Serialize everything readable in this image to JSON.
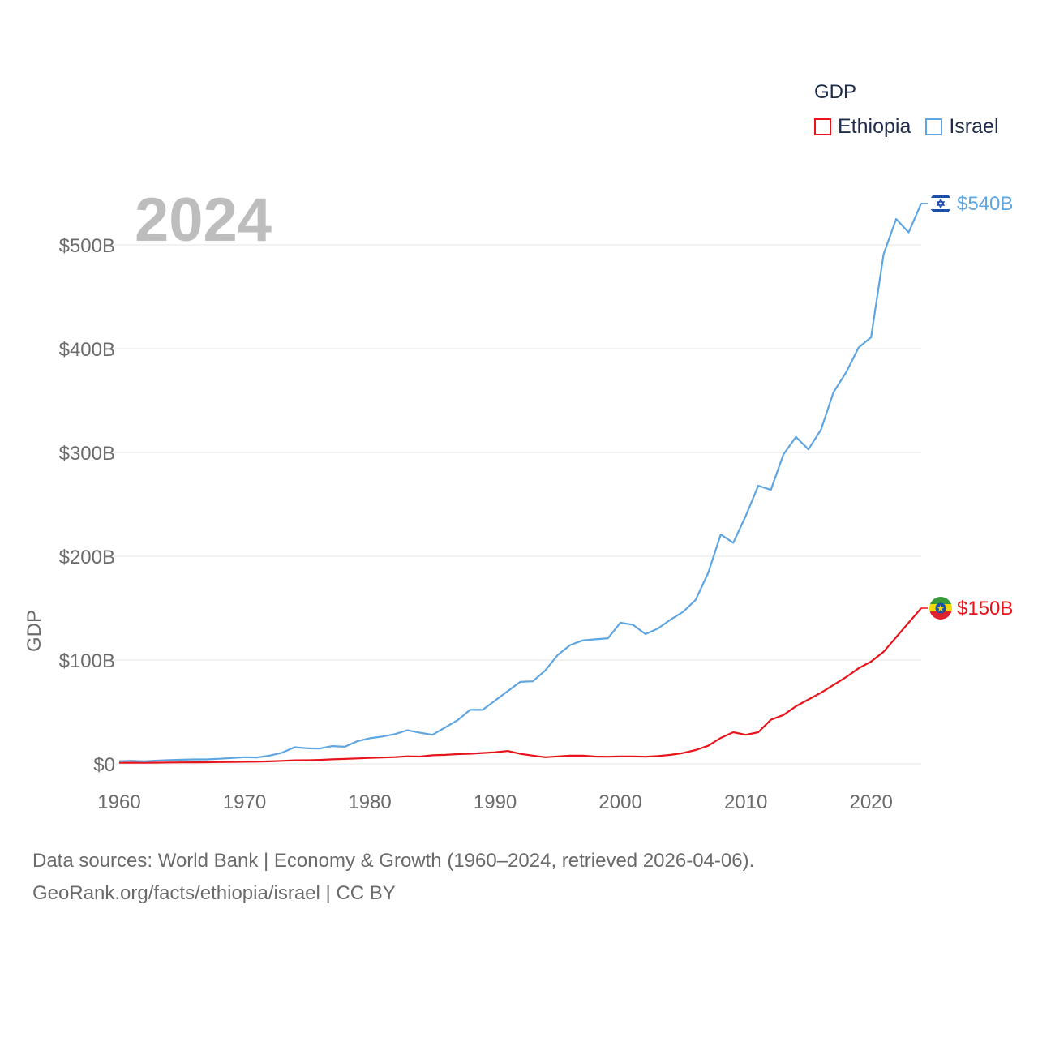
{
  "legend": {
    "title": "GDP",
    "items": [
      {
        "label": "Ethiopia",
        "color": "#e8141b"
      },
      {
        "label": "Israel",
        "color": "#5fa5e0"
      }
    ]
  },
  "year_label": "2024",
  "source": {
    "line1": "Data sources: World Bank | Economy & Growth (1960–2024, retrieved 2026-04-06).",
    "line2": "GeoRank.org/facts/ethiopia/israel | CC BY"
  },
  "colors": {
    "ethiopia": "#e8141b",
    "israel": "#5fa5e0",
    "grid": "#e6e6e6",
    "axis_text": "#6b6b6b"
  },
  "chart_data": {
    "type": "line",
    "title": "GDP",
    "xlabel": "",
    "ylabel": "GDP",
    "xlim": [
      1960,
      2024
    ],
    "ylim": [
      0,
      500
    ],
    "y_unit": "billion USD",
    "x_ticks": [
      {
        "value": 1960,
        "label": "1960"
      },
      {
        "value": 1970,
        "label": "1970"
      },
      {
        "value": 1980,
        "label": "1980"
      },
      {
        "value": 1990,
        "label": "1990"
      },
      {
        "value": 2000,
        "label": "2000"
      },
      {
        "value": 2010,
        "label": "2010"
      },
      {
        "value": 2020,
        "label": "2020"
      }
    ],
    "y_ticks": [
      {
        "value": 0,
        "label": "$0"
      },
      {
        "value": 100,
        "label": "$100B"
      },
      {
        "value": 200,
        "label": "$200B"
      },
      {
        "value": 300,
        "label": "$300B"
      },
      {
        "value": 400,
        "label": "$400B"
      },
      {
        "value": 500,
        "label": "$500B"
      }
    ],
    "x": [
      1960,
      1961,
      1962,
      1963,
      1964,
      1965,
      1966,
      1967,
      1968,
      1969,
      1970,
      1971,
      1972,
      1973,
      1974,
      1975,
      1976,
      1977,
      1978,
      1979,
      1980,
      1981,
      1982,
      1983,
      1984,
      1985,
      1986,
      1987,
      1988,
      1989,
      1990,
      1991,
      1992,
      1993,
      1994,
      1995,
      1996,
      1997,
      1998,
      1999,
      2000,
      2001,
      2002,
      2003,
      2004,
      2005,
      2006,
      2007,
      2008,
      2009,
      2010,
      2011,
      2012,
      2013,
      2014,
      2015,
      2016,
      2017,
      2018,
      2019,
      2020,
      2021,
      2022,
      2023,
      2024
    ],
    "series": [
      {
        "name": "Ethiopia",
        "end_label": "$150B",
        "values": [
          1.0,
          1.1,
          1.1,
          1.2,
          1.3,
          1.4,
          1.5,
          1.6,
          1.7,
          1.8,
          2.0,
          2.1,
          2.4,
          2.9,
          3.4,
          3.5,
          3.8,
          4.4,
          4.8,
          5.2,
          5.7,
          6.1,
          6.5,
          7.3,
          7.0,
          8.3,
          8.7,
          9.4,
          9.8,
          10.5,
          11.2,
          12.4,
          9.7,
          8.0,
          6.4,
          7.2,
          8.0,
          7.9,
          7.0,
          6.9,
          7.2,
          7.2,
          6.9,
          7.6,
          8.7,
          10.5,
          13.3,
          17.4,
          25.0,
          30.5,
          28.0,
          30.5,
          42.5,
          47.0,
          55.5,
          62.0,
          68.5,
          76.0,
          83.5,
          92.0,
          98.5,
          108.0,
          122.0,
          136.0,
          150.0
        ]
      },
      {
        "name": "Israel",
        "end_label": "$540B",
        "values": [
          2.6,
          3.0,
          2.5,
          3.1,
          3.6,
          4.0,
          4.3,
          4.3,
          4.9,
          5.6,
          6.4,
          6.2,
          8.0,
          10.7,
          16.0,
          15.0,
          14.8,
          17.1,
          16.5,
          21.8,
          24.7,
          26.3,
          28.7,
          32.4,
          30.0,
          28.0,
          35.0,
          42.0,
          52.0,
          52.0,
          61.0,
          70.0,
          79.0,
          79.5,
          90.0,
          105.0,
          114.5,
          119.0,
          120.0,
          121.0,
          136.0,
          134.0,
          125.0,
          130.5,
          139.0,
          146.5,
          158.0,
          184.0,
          221.0,
          213.0,
          239.0,
          268.0,
          264.0,
          298.0,
          315.0,
          303.0,
          322.0,
          358.0,
          377.0,
          401.0,
          411.0,
          491.0,
          525.0,
          512.0,
          540.0
        ]
      }
    ]
  }
}
